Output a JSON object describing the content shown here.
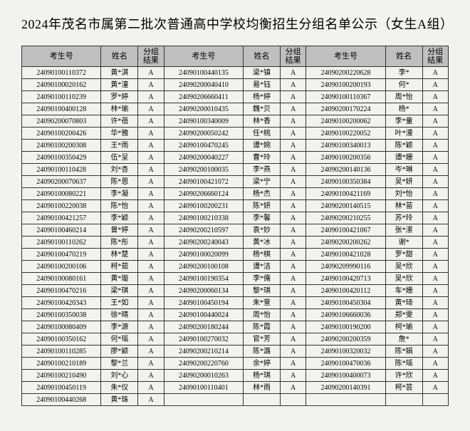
{
  "title": "2024年茂名市属第二批次普通高中学校均衡招生分组名单公示（女生A组）",
  "headers": {
    "id": "考生号",
    "name": "姓名",
    "result_l1": "分组",
    "result_l2": "结果"
  },
  "rows": [
    {
      "c1": {
        "id": "24090100110372",
        "name": "黄*淇",
        "res": "A"
      },
      "c2": {
        "id": "24090100440135",
        "name": "梁*镇",
        "res": "A"
      },
      "c3": {
        "id": "24090200220628",
        "name": "李*",
        "res": "A"
      }
    },
    {
      "c1": {
        "id": "24090100020162",
        "name": "黄*潼",
        "res": "A"
      },
      "c2": {
        "id": "24090200040410",
        "name": "易*钰",
        "res": "A"
      },
      "c3": {
        "id": "24090100200193",
        "name": "何*",
        "res": "A"
      }
    },
    {
      "c1": {
        "id": "24090100110239",
        "name": "罗*婷",
        "res": "A"
      },
      "c2": {
        "id": "24090206660411",
        "name": "杨*婷",
        "res": "A"
      },
      "c3": {
        "id": "24090100110367",
        "name": "周*怡",
        "res": "A"
      }
    },
    {
      "c1": {
        "id": "24090100400128",
        "name": "林*瑜",
        "res": "A"
      },
      "c2": {
        "id": "24090200010435",
        "name": "魏*贝",
        "res": "A"
      },
      "c3": {
        "id": "24090200170224",
        "name": "杨*",
        "res": "A"
      }
    },
    {
      "c1": {
        "id": "24090200070803",
        "name": "许*蓓",
        "res": "A"
      },
      "c2": {
        "id": "24090100340009",
        "name": "林*香",
        "res": "A"
      },
      "c3": {
        "id": "24090100200062",
        "name": "李*童",
        "res": "A"
      }
    },
    {
      "c1": {
        "id": "24090100200426",
        "name": "华*雅",
        "res": "A"
      },
      "c2": {
        "id": "24090200050242",
        "name": "任*桃",
        "res": "A"
      },
      "c3": {
        "id": "24090100220052",
        "name": "叶*漫",
        "res": "A"
      }
    },
    {
      "c1": {
        "id": "24090100200308",
        "name": "王*雨",
        "res": "A"
      },
      "c2": {
        "id": "24090100470245",
        "name": "谭*婉",
        "res": "A"
      },
      "c3": {
        "id": "24090100340013",
        "name": "陈*颖",
        "res": "A"
      }
    },
    {
      "c1": {
        "id": "24090100350429",
        "name": "伍*呈",
        "res": "A"
      },
      "c2": {
        "id": "24090200040227",
        "name": "曹*玲",
        "res": "A"
      },
      "c3": {
        "id": "24090100200356",
        "name": "谭*姗",
        "res": "A"
      }
    },
    {
      "c1": {
        "id": "24090100110428",
        "name": "刘*杏",
        "res": "A"
      },
      "c2": {
        "id": "24090200100035",
        "name": "李*燕",
        "res": "A"
      },
      "c3": {
        "id": "24090200140136",
        "name": "岑*琳",
        "res": "A"
      }
    },
    {
      "c1": {
        "id": "24090200070637",
        "name": "陈*恩",
        "res": "A"
      },
      "c2": {
        "id": "24090100421072",
        "name": "梁*宁",
        "res": "A"
      },
      "c3": {
        "id": "24090100350384",
        "name": "吴*妍",
        "res": "A"
      }
    },
    {
      "c1": {
        "id": "24090100080221",
        "name": "李*凝",
        "res": "A"
      },
      "c2": {
        "id": "24090206660124",
        "name": "杨*杰",
        "res": "A"
      },
      "c3": {
        "id": "24090100421169",
        "name": "刘*怡",
        "res": "A"
      }
    },
    {
      "c1": {
        "id": "24090100220038",
        "name": "陈*怡",
        "res": "A"
      },
      "c2": {
        "id": "24090100200231",
        "name": "陈*妍",
        "res": "A"
      },
      "c3": {
        "id": "24090200140515",
        "name": "林*苗",
        "res": "A"
      }
    },
    {
      "c1": {
        "id": "24090100421257",
        "name": "李*颖",
        "res": "A"
      },
      "c2": {
        "id": "24090100210338",
        "name": "李*馨",
        "res": "A"
      },
      "c3": {
        "id": "24090200210255",
        "name": "苏*玲",
        "res": "A"
      }
    },
    {
      "c1": {
        "id": "24090100460214",
        "name": "曾*婷",
        "res": "A"
      },
      "c2": {
        "id": "24090200210597",
        "name": "袁*妙",
        "res": "A"
      },
      "c3": {
        "id": "24090100421067",
        "name": "张*潆",
        "res": "A"
      }
    },
    {
      "c1": {
        "id": "24090100110262",
        "name": "陈*彤",
        "res": "A"
      },
      "c2": {
        "id": "24090200240043",
        "name": "黄*冰",
        "res": "A"
      },
      "c3": {
        "id": "24090200200262",
        "name": "谢*",
        "res": "A"
      }
    },
    {
      "c1": {
        "id": "24090100470219",
        "name": "林*楚",
        "res": "A"
      },
      "c2": {
        "id": "24090100020099",
        "name": "杨*棋",
        "res": "A"
      },
      "c3": {
        "id": "24090100421028",
        "name": "罗*甜",
        "res": "A"
      }
    },
    {
      "c1": {
        "id": "24090100200106",
        "name": "柯*茹",
        "res": "A"
      },
      "c2": {
        "id": "24090200100108",
        "name": "谭*洁",
        "res": "A"
      },
      "c3": {
        "id": "24090209990116",
        "name": "吴*欣",
        "res": "A"
      }
    },
    {
      "c1": {
        "id": "24090100080161",
        "name": "黄*璇",
        "res": "A"
      },
      "c2": {
        "id": "24090100190354",
        "name": "李*儒",
        "res": "A"
      },
      "c3": {
        "id": "24090100420713",
        "name": "吴*欣",
        "res": "A"
      }
    },
    {
      "c1": {
        "id": "24090100470216",
        "name": "梁*琪",
        "res": "A"
      },
      "c2": {
        "id": "24090200060134",
        "name": "黎*琪",
        "res": "A"
      },
      "c3": {
        "id": "24090100420112",
        "name": "车*姗",
        "res": "A"
      }
    },
    {
      "c1": {
        "id": "24090100420343",
        "name": "王*如",
        "res": "A"
      },
      "c2": {
        "id": "24090100450194",
        "name": "朱*萱",
        "res": "A"
      },
      "c3": {
        "id": "24090100450304",
        "name": "黄*琦",
        "res": "A"
      }
    },
    {
      "c1": {
        "id": "24090100350038",
        "name": "徐*晴",
        "res": "A"
      },
      "c2": {
        "id": "24090100440024",
        "name": "周*怡",
        "res": "A"
      },
      "c3": {
        "id": "24090106660036",
        "name": "郑*雯",
        "res": "A"
      }
    },
    {
      "c1": {
        "id": "24090100080409",
        "name": "李*源",
        "res": "A"
      },
      "c2": {
        "id": "24090200180244",
        "name": "陈*霞",
        "res": "A"
      },
      "c3": {
        "id": "24090100190200",
        "name": "柯*瑜",
        "res": "A"
      }
    },
    {
      "c1": {
        "id": "24090100350162",
        "name": "何*瑶",
        "res": "A"
      },
      "c2": {
        "id": "24090100270032",
        "name": "官*芳",
        "res": "A"
      },
      "c3": {
        "id": "24090200200359",
        "name": "詹*",
        "res": "A"
      }
    },
    {
      "c1": {
        "id": "24090100110285",
        "name": "廖*颖",
        "res": "A"
      },
      "c2": {
        "id": "24090200210214",
        "name": "陈*潞",
        "res": "A"
      },
      "c3": {
        "id": "24090100320032",
        "name": "陈*娟",
        "res": "A"
      }
    },
    {
      "c1": {
        "id": "24090100210189",
        "name": "黎*兰",
        "res": "A"
      },
      "c2": {
        "id": "24090200220760",
        "name": "余*婷",
        "res": "A"
      },
      "c3": {
        "id": "24090100470036",
        "name": "陈*瑶",
        "res": "A"
      }
    },
    {
      "c1": {
        "id": "24090100210490",
        "name": "刘*心",
        "res": "A"
      },
      "c2": {
        "id": "24090200010263",
        "name": "杨*琪",
        "res": "A"
      },
      "c3": {
        "id": "24090100400073",
        "name": "许*欣",
        "res": "A"
      }
    },
    {
      "c1": {
        "id": "24090100450119",
        "name": "朱*仪",
        "res": "A"
      },
      "c2": {
        "id": "24090100110401",
        "name": "林*雨",
        "res": "A"
      },
      "c3": {
        "id": "24090200140391",
        "name": "柯*芸",
        "res": "A"
      }
    },
    {
      "c1": {
        "id": "24090100440268",
        "name": "黄*珠",
        "res": "A"
      },
      "c2": {
        "id": "",
        "name": "",
        "res": ""
      },
      "c3": {
        "id": "",
        "name": "",
        "res": ""
      }
    }
  ]
}
